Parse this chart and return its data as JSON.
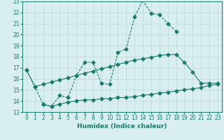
{
  "line1_x": [
    0,
    1,
    2,
    3,
    4,
    5,
    6,
    7,
    8,
    9,
    10,
    11,
    12,
    13,
    14,
    15,
    16,
    17,
    18
  ],
  "line1_y": [
    16.8,
    15.3,
    13.7,
    13.5,
    14.5,
    14.3,
    16.3,
    17.5,
    17.5,
    15.6,
    15.5,
    18.4,
    18.7,
    21.6,
    23.1,
    21.9,
    21.8,
    21.0,
    20.3
  ],
  "line2_x": [
    0,
    1,
    2,
    3,
    4,
    5,
    6,
    7,
    8,
    9,
    10,
    11,
    12,
    13,
    14,
    15,
    16,
    17,
    18,
    19,
    20,
    21,
    22,
    23
  ],
  "line2_y": [
    16.8,
    15.3,
    15.5,
    15.7,
    15.9,
    16.1,
    16.3,
    16.5,
    16.7,
    16.9,
    17.1,
    17.3,
    17.5,
    17.7,
    17.8,
    17.95,
    18.1,
    18.2,
    18.2,
    17.5,
    16.6,
    15.6,
    15.6,
    15.6
  ],
  "line3_x": [
    2,
    3,
    4,
    5,
    6,
    7,
    8,
    9,
    10,
    11,
    12,
    13,
    14,
    15,
    16,
    17,
    18,
    19,
    20,
    21,
    22,
    23
  ],
  "line3_y": [
    13.7,
    13.5,
    13.7,
    13.9,
    14.0,
    14.1,
    14.1,
    14.2,
    14.2,
    14.3,
    14.3,
    14.4,
    14.5,
    14.6,
    14.7,
    14.8,
    14.9,
    15.0,
    15.1,
    15.2,
    15.4,
    15.5
  ],
  "color": "#1a7a6e",
  "bg_color": "#d9eeee",
  "grid_color": "#b8d8d8",
  "xlim": [
    -0.5,
    23.5
  ],
  "ylim": [
    13,
    23
  ],
  "xlabel": "Humidex (Indice chaleur)",
  "xticks": [
    0,
    1,
    2,
    3,
    4,
    5,
    6,
    7,
    8,
    9,
    10,
    11,
    12,
    13,
    14,
    15,
    16,
    17,
    18,
    19,
    20,
    21,
    22,
    23
  ],
  "yticks": [
    13,
    14,
    15,
    16,
    17,
    18,
    19,
    20,
    21,
    22,
    23
  ],
  "fontsize_label": 6.5,
  "fontsize_tick": 5.5,
  "linewidth": 0.8,
  "markersize": 2.5
}
